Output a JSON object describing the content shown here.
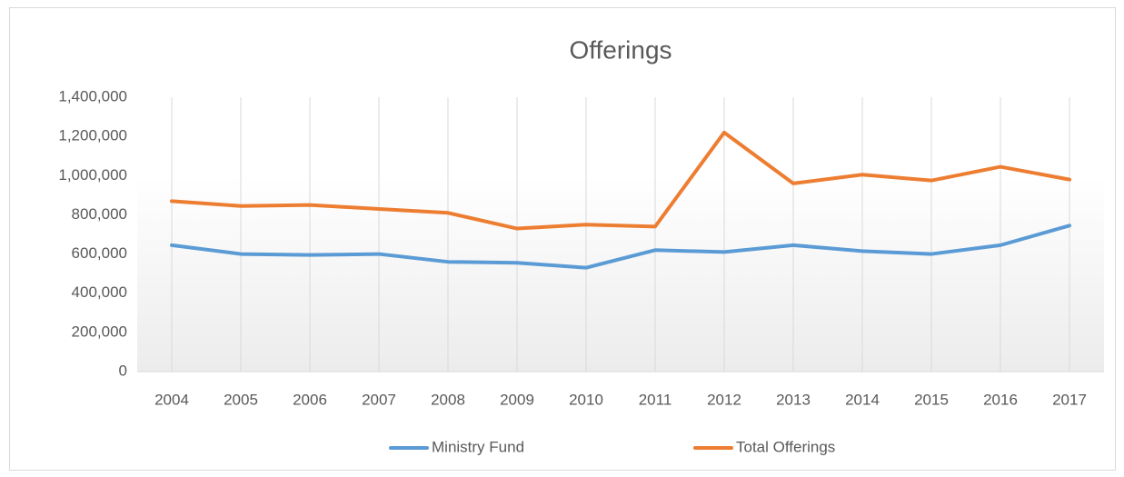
{
  "chart_data": {
    "type": "line",
    "title": "Offerings",
    "categories": [
      "2004",
      "2005",
      "2006",
      "2007",
      "2008",
      "2009",
      "2010",
      "2011",
      "2012",
      "2013",
      "2014",
      "2015",
      "2016",
      "2017"
    ],
    "series": [
      {
        "name": "Ministry Fund",
        "color": "#5b9bd5",
        "values": [
          645000,
          600000,
          595000,
          600000,
          560000,
          555000,
          530000,
          620000,
          610000,
          645000,
          615000,
          600000,
          645000,
          745000
        ]
      },
      {
        "name": "Total Offerings",
        "color": "#ed7d31",
        "values": [
          870000,
          845000,
          850000,
          830000,
          810000,
          730000,
          750000,
          740000,
          1220000,
          960000,
          1005000,
          975000,
          1045000,
          980000
        ]
      }
    ],
    "ylim": [
      0,
      1400000
    ],
    "yticks": [
      0,
      {
        "value": 200000,
        "label": "200,000"
      },
      {
        "value": 400000,
        "label": "400,000"
      },
      {
        "value": 600000,
        "label": "600,000"
      },
      {
        "value": 800000,
        "label": "800,000"
      },
      {
        "value": 1000000,
        "label": "1,000,000"
      },
      {
        "value": 1200000,
        "label": "1,200,000"
      },
      {
        "value": 1400000,
        "label": "1,400,000"
      }
    ],
    "grid": true,
    "legend": "bottom"
  }
}
